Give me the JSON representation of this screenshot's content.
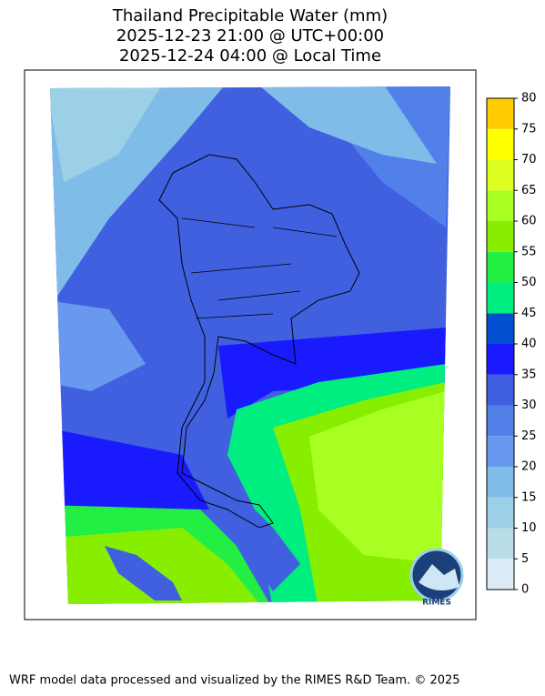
{
  "title": [
    "Thailand Precipitable Water (mm)",
    "2025-12-23 21:00 @ UTC+00:00",
    "2025-12-24 04:00 @ Local Time"
  ],
  "colorbar": {
    "ticks": [
      0,
      5,
      10,
      15,
      20,
      25,
      30,
      35,
      40,
      45,
      50,
      55,
      60,
      65,
      70,
      75,
      80
    ],
    "colors": [
      "#dcecf6",
      "#b8dde8",
      "#9cd0e6",
      "#80bce8",
      "#6899ee",
      "#5080e8",
      "#4060e0",
      "#1a1aff",
      "#0050d0",
      "#00ee80",
      "#22ee44",
      "#88ee00",
      "#aaff22",
      "#ddff22",
      "#ffff00",
      "#ffcc00"
    ]
  },
  "logo": "RIMES",
  "footer": "WRF model data processed and visualized by the RIMES R&D Team. © 2025"
}
